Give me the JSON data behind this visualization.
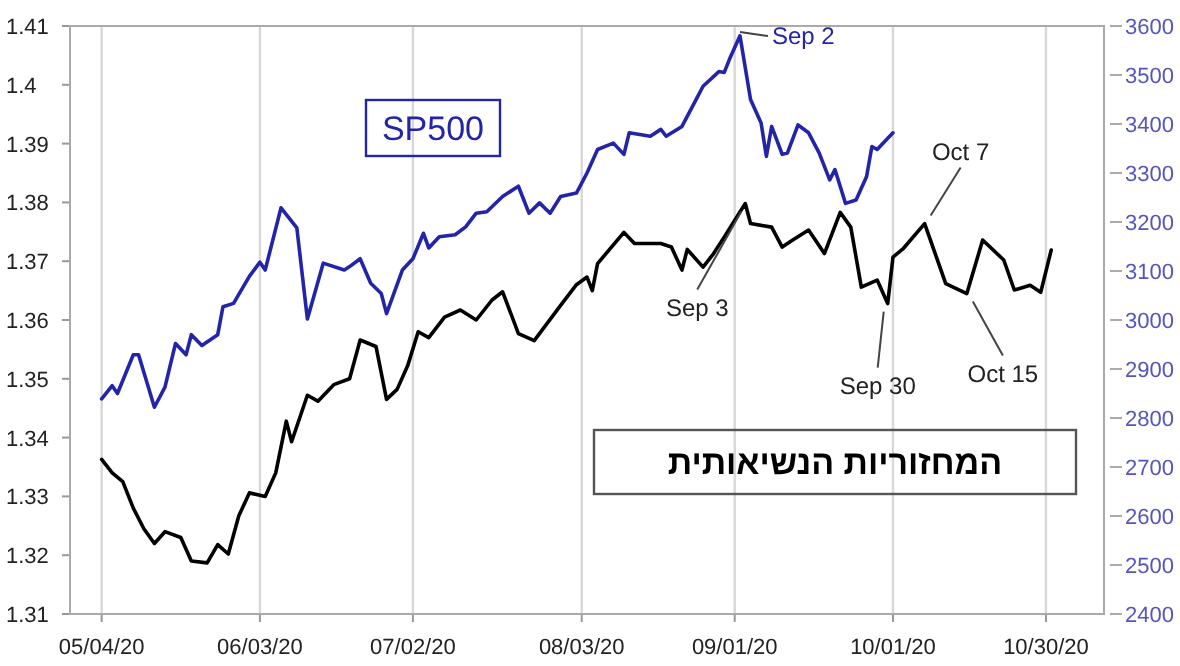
{
  "chart_data": {
    "type": "line",
    "xlim": [
      "2020-04-28",
      "2020-11-10"
    ],
    "xticks": [
      {
        "value": "2020-05-04",
        "label": "05/04/20"
      },
      {
        "value": "2020-06-03",
        "label": "06/03/20"
      },
      {
        "value": "2020-07-02",
        "label": "07/02/20"
      },
      {
        "value": "2020-08-03",
        "label": "08/03/20"
      },
      {
        "value": "2020-09-01",
        "label": "09/01/20"
      },
      {
        "value": "2020-10-01",
        "label": "10/01/20"
      },
      {
        "value": "2020-10-30",
        "label": "10/30/20"
      }
    ],
    "ylim": [
      1.31,
      1.41
    ],
    "yticks": [
      1.31,
      1.32,
      1.33,
      1.34,
      1.35,
      1.36,
      1.37,
      1.38,
      1.39,
      1.4,
      1.41
    ],
    "y2lim": [
      2400,
      3600
    ],
    "y2ticks": [
      2400,
      2500,
      2600,
      2700,
      2800,
      2900,
      3000,
      3100,
      3200,
      3300,
      3400,
      3500,
      3600
    ],
    "grid": "x",
    "series": [
      {
        "name": "המחזוריות הנשיאותית",
        "color": "#000000",
        "x": [
          "2020-05-04",
          "2020-05-06",
          "2020-05-08",
          "2020-05-10",
          "2020-05-12",
          "2020-05-14",
          "2020-05-16",
          "2020-05-19",
          "2020-05-21",
          "2020-05-24",
          "2020-05-26",
          "2020-05-28",
          "2020-05-30",
          "2020-06-01",
          "2020-06-04",
          "2020-06-06",
          "2020-06-08",
          "2020-06-09",
          "2020-06-12",
          "2020-06-14",
          "2020-06-17",
          "2020-06-20",
          "2020-06-22",
          "2020-06-25",
          "2020-06-27",
          "2020-06-29",
          "2020-07-01",
          "2020-07-03",
          "2020-07-05",
          "2020-07-08",
          "2020-07-11",
          "2020-07-14",
          "2020-07-17",
          "2020-07-19",
          "2020-07-22",
          "2020-07-25",
          "2020-07-30",
          "2020-08-02",
          "2020-08-04",
          "2020-08-05",
          "2020-08-06",
          "2020-08-11",
          "2020-08-13",
          "2020-08-18",
          "2020-08-20",
          "2020-08-22",
          "2020-08-23",
          "2020-08-26",
          "2020-08-28",
          "2020-08-30",
          "2020-09-03",
          "2020-09-04",
          "2020-09-08",
          "2020-09-10",
          "2020-09-12",
          "2020-09-15",
          "2020-09-18",
          "2020-09-21",
          "2020-09-23",
          "2020-09-25",
          "2020-09-28",
          "2020-09-30",
          "2020-10-01",
          "2020-10-03",
          "2020-10-07",
          "2020-10-09",
          "2020-10-11",
          "2020-10-15",
          "2020-10-18",
          "2020-10-22",
          "2020-10-24",
          "2020-10-27",
          "2020-10-29",
          "2020-10-31"
        ],
        "values": [
          1.3363,
          1.334,
          1.3325,
          1.328,
          1.3245,
          1.322,
          1.324,
          1.323,
          1.319,
          1.3187,
          1.3218,
          1.3202,
          1.3267,
          1.3306,
          1.33,
          1.334,
          1.3428,
          1.3393,
          1.3472,
          1.3462,
          1.349,
          1.35,
          1.3566,
          1.3555,
          1.3465,
          1.3482,
          1.3522,
          1.358,
          1.357,
          1.3605,
          1.3617,
          1.36,
          1.3634,
          1.3648,
          1.3577,
          1.3565,
          1.3625,
          1.366,
          1.3673,
          1.365,
          1.3696,
          1.3749,
          1.373,
          1.373,
          1.3724,
          1.3685,
          1.372,
          1.369,
          1.3713,
          1.3741,
          1.3798,
          1.3764,
          1.3758,
          1.3724,
          1.3736,
          1.3753,
          1.3713,
          1.3783,
          1.3758,
          1.3656,
          1.3668,
          1.3628,
          1.3707,
          1.3722,
          1.3764,
          1.3713,
          1.3662,
          1.3645,
          1.3736,
          1.3702,
          1.3651,
          1.3659,
          1.3647,
          1.3719
        ]
      },
      {
        "name": "SP500",
        "color": "#2424a8",
        "axis": "y2",
        "x": [
          "2020-05-04",
          "2020-05-06",
          "2020-05-07",
          "2020-05-10",
          "2020-05-11",
          "2020-05-14",
          "2020-05-16",
          "2020-05-18",
          "2020-05-20",
          "2020-05-21",
          "2020-05-23",
          "2020-05-26",
          "2020-05-27",
          "2020-05-29",
          "2020-06-01",
          "2020-06-03",
          "2020-06-04",
          "2020-06-07",
          "2020-06-10",
          "2020-06-12",
          "2020-06-15",
          "2020-06-19",
          "2020-06-20",
          "2020-06-22",
          "2020-06-24",
          "2020-06-26",
          "2020-06-27",
          "2020-06-30",
          "2020-07-02",
          "2020-07-04",
          "2020-07-05",
          "2020-07-07",
          "2020-07-10",
          "2020-07-12",
          "2020-07-14",
          "2020-07-16",
          "2020-07-19",
          "2020-07-22",
          "2020-07-24",
          "2020-07-26",
          "2020-07-28",
          "2020-07-30",
          "2020-08-02",
          "2020-08-04",
          "2020-08-06",
          "2020-08-09",
          "2020-08-11",
          "2020-08-12",
          "2020-08-16",
          "2020-08-18",
          "2020-08-19",
          "2020-08-22",
          "2020-08-24",
          "2020-08-26",
          "2020-08-29",
          "2020-08-30",
          "2020-08-31",
          "2020-09-02",
          "2020-09-04",
          "2020-09-06",
          "2020-09-07",
          "2020-09-08",
          "2020-09-10",
          "2020-09-11",
          "2020-09-13",
          "2020-09-15",
          "2020-09-17",
          "2020-09-19",
          "2020-09-20",
          "2020-09-22",
          "2020-09-24",
          "2020-09-26",
          "2020-09-27",
          "2020-09-28",
          "2020-10-01"
        ],
        "values": [
          2839,
          2866,
          2850,
          2929,
          2929,
          2822,
          2863,
          2952,
          2929,
          2970,
          2948,
          2970,
          3027,
          3034,
          3089,
          3118,
          3102,
          3229,
          3188,
          3002,
          3116,
          3102,
          3109,
          3125,
          3075,
          3054,
          3013,
          3102,
          3125,
          3177,
          3147,
          3170,
          3174,
          3190,
          3218,
          3221,
          3252,
          3273,
          3218,
          3239,
          3218,
          3252,
          3259,
          3300,
          3348,
          3361,
          3338,
          3382,
          3375,
          3389,
          3375,
          3395,
          3436,
          3477,
          3507,
          3505,
          3532,
          3580,
          3450,
          3402,
          3334,
          3395,
          3338,
          3341,
          3398,
          3382,
          3341,
          3286,
          3307,
          3238,
          3245,
          3293,
          3354,
          3348,
          3382
        ]
      }
    ],
    "annotations": [
      "Sep 2",
      {
        "text": "Sep 3",
        "x": "2020-09-03",
        "y": 1.3798
      },
      {
        "text": "Sep 30",
        "x": "2020-09-30",
        "y": 1.3628
      },
      {
        "text": "Oct 7",
        "x": "2020-10-07",
        "y": 1.3764
      },
      {
        "text": "Oct 15",
        "x": "2020-10-15",
        "y": 1.3645
      }
    ]
  }
}
